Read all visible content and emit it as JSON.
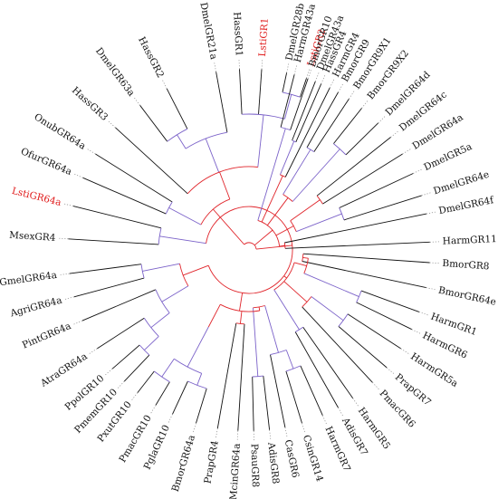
{
  "colors": {
    "black": "#111111",
    "purple": "#7b62c9",
    "red": "#e0242a",
    "highlight": "#e01b1b",
    "dotted": "#8a8a8a"
  },
  "taxa": [
    {
      "label": "LstiGR2",
      "angle": -71.5,
      "highlight": true
    },
    {
      "label": "DmelGR28b",
      "angle": -78,
      "highlight": false
    },
    {
      "label": "LstiGR1",
      "angle": -86,
      "highlight": true
    },
    {
      "label": "HassGR1",
      "angle": -93,
      "highlight": false
    },
    {
      "label": "DmelGR21a",
      "angle": -100.5,
      "highlight": false
    },
    {
      "label": "HassGR2",
      "angle": -117,
      "highlight": false
    },
    {
      "label": "DmelGR63a",
      "angle": -127,
      "highlight": false
    },
    {
      "label": "HassGR3",
      "angle": -137.5,
      "highlight": false
    },
    {
      "label": "OnubGR64a",
      "angle": -148,
      "highlight": false
    },
    {
      "label": "OfurGR64a",
      "angle": -156.5,
      "highlight": false
    },
    {
      "label": "LstiGR64a",
      "angle": -166,
      "highlight": true
    },
    {
      "label": "MsexGR4",
      "angle": -176.5,
      "highlight": false
    },
    {
      "label": "GmelGR64a",
      "angle": 172.5,
      "highlight": false
    },
    {
      "label": "AgriGR64a",
      "angle": 165,
      "highlight": false
    },
    {
      "label": "PintGR64a",
      "angle": 157,
      "highlight": false
    },
    {
      "label": "AtraGR64a",
      "angle": 147,
      "highlight": false
    },
    {
      "label": "PpolGR10",
      "angle": 139,
      "highlight": false
    },
    {
      "label": "PmemGR10",
      "angle": 133.5,
      "highlight": false
    },
    {
      "label": "PxutGR10",
      "angle": 128,
      "highlight": false
    },
    {
      "label": "PmacGR10",
      "angle": 121,
      "highlight": false
    },
    {
      "label": "PglaGR10",
      "angle": 115,
      "highlight": false
    },
    {
      "label": "BmorGR64a",
      "angle": 107,
      "highlight": false
    },
    {
      "label": "PrapGR4",
      "angle": 100,
      "highlight": false
    },
    {
      "label": "McinGR64a",
      "angle": 93.5,
      "highlight": false
    },
    {
      "label": "PsauGR8",
      "angle": 88.5,
      "highlight": false
    },
    {
      "label": "AdisGR8",
      "angle": 83.5,
      "highlight": false
    },
    {
      "label": "CasGR6",
      "angle": 78.5,
      "highlight": false
    },
    {
      "label": "CsinGR14",
      "angle": 73,
      "highlight": false
    },
    {
      "label": "HarmGR7",
      "angle": 66,
      "highlight": false
    },
    {
      "label": "AdisGR7",
      "angle": 60.5,
      "highlight": false
    },
    {
      "label": "HarmGR5",
      "angle": 55,
      "highlight": false
    },
    {
      "label": "PmacGR6",
      "angle": 47,
      "highlight": false
    },
    {
      "label": "PrapGR7",
      "angle": 40.5,
      "highlight": false
    },
    {
      "label": "HarmGR5a",
      "angle": 33,
      "highlight": false
    },
    {
      "label": "HarmGR6",
      "angle": 26,
      "highlight": false
    },
    {
      "label": "HarmGR1",
      "angle": 20,
      "highlight": false
    },
    {
      "label": "BmorGR64e",
      "angle": 12,
      "highlight": false
    },
    {
      "label": "BmorGR8",
      "angle": 4,
      "highlight": false
    },
    {
      "label": "HarmGR11",
      "angle": -2.5,
      "highlight": false
    },
    {
      "label": "DmelGR64f",
      "angle": -11.5,
      "highlight": false
    },
    {
      "label": "DmelGR64e",
      "angle": -17.5,
      "highlight": false
    },
    {
      "label": "DmelGR5a",
      "angle": -25,
      "highlight": false
    },
    {
      "label": "DmelGR64a",
      "angle": -32,
      "highlight": false
    },
    {
      "label": "DmelGR64c",
      "angle": -38.5,
      "highlight": false
    },
    {
      "label": "DmelGR64d",
      "angle": -44.5,
      "highlight": false
    },
    {
      "label": "BmorGR9X2",
      "angle": -51.5,
      "highlight": false
    },
    {
      "label": "BmorGR9X1",
      "angle": -56.5,
      "highlight": false
    },
    {
      "label": "BmorGR9",
      "angle": -60.5,
      "highlight": false
    },
    {
      "label": "HarmGR4",
      "angle": -63.5,
      "highlight": false
    },
    {
      "label": "HassGR4",
      "angle": -66.5,
      "highlight": false
    },
    {
      "label": "DmelGR43a",
      "angle": -68.5,
      "highlight": false
    },
    {
      "label": "BmorGR10",
      "angle": -71,
      "highlight": false
    },
    {
      "label": "HarmGR43a",
      "angle": -75.5,
      "highlight": false
    }
  ]
}
